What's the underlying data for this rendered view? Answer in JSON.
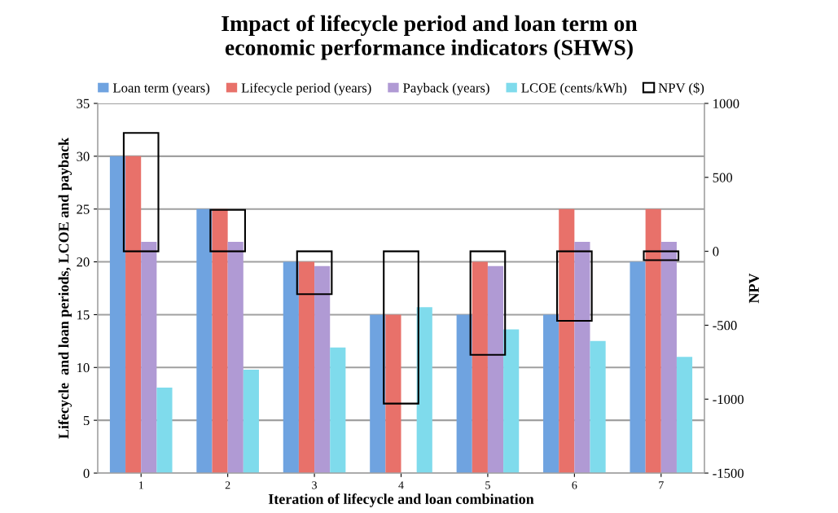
{
  "chart_data": {
    "type": "bar",
    "title": "Impact of lifecycle period and loan term on\neconomic performance indicators (SHWS)",
    "xlabel": "Iteration of lifecycle and loan combination",
    "ylabel": "Lifecycle  and loan periods, LCOE and payback",
    "y2label": "NPV",
    "categories": [
      "1",
      "2",
      "3",
      "4",
      "5",
      "6",
      "7"
    ],
    "series": [
      {
        "name": "Loan term (years)",
        "color": "#6fa3e0",
        "values": [
          30,
          25,
          20,
          15,
          15,
          15,
          20
        ]
      },
      {
        "name": "Lifecycle period (years)",
        "color": "#e8716a",
        "values": [
          30,
          25,
          20,
          15,
          20,
          25,
          25
        ]
      },
      {
        "name": "Payback (years)",
        "color": "#b09ad4",
        "values": [
          21.9,
          21.9,
          19.6,
          null,
          19.6,
          21.9,
          21.9
        ]
      },
      {
        "name": "LCOE (cents/kWh)",
        "color": "#7fdbec",
        "values": [
          8.1,
          9.8,
          11.9,
          15.7,
          13.6,
          12.5,
          11.0
        ]
      },
      {
        "name": "NPV ($)",
        "color": "#000000",
        "axis": "y2",
        "values": [
          800,
          280,
          -290,
          -1030,
          -700,
          -470,
          -60
        ]
      }
    ],
    "ylim": [
      0,
      35
    ],
    "yticks": [
      0,
      5,
      10,
      15,
      20,
      25,
      30,
      35
    ],
    "y2lim": [
      -1500,
      1000
    ],
    "y2ticks": [
      -1500,
      -1000,
      -500,
      0,
      500,
      1000
    ],
    "grid": "y",
    "legend": "top"
  }
}
